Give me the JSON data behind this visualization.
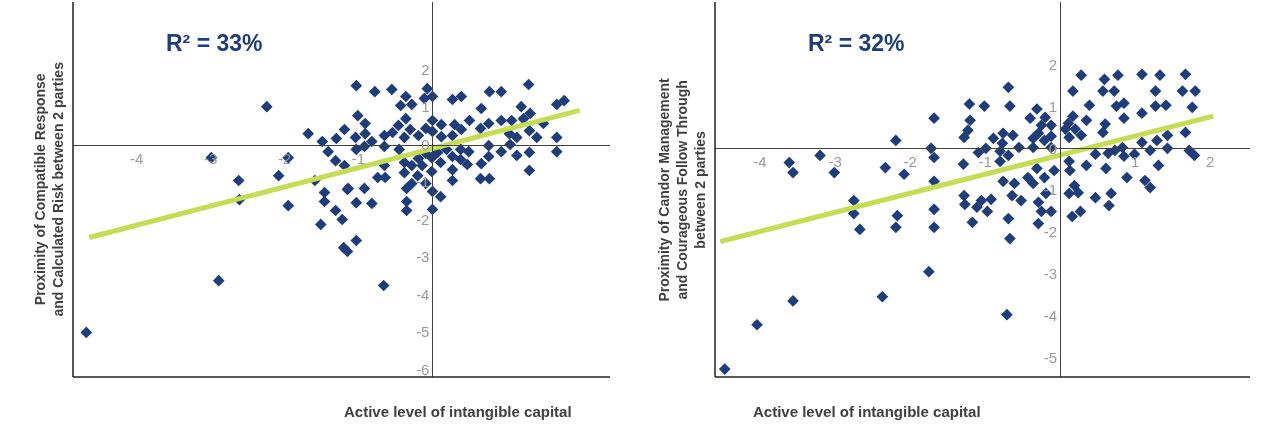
{
  "chart_data": [
    {
      "type": "scatter",
      "annotations": [
        "R² = 33%"
      ],
      "xlabel": "Active level of intangible capital",
      "ylabel": "Proximity of Compatible Response\nand Calculated Risk between 2 parties",
      "xlim": [
        -4.86,
        2.4
      ],
      "ylim": [
        -6.2,
        3.8
      ],
      "xticks": [
        -4,
        -3,
        -2,
        -1
      ],
      "yticks": [
        -6,
        -5,
        -4,
        -3,
        -2,
        -1,
        0,
        1,
        2
      ],
      "series": [
        {
          "marker": "diamond",
          "color": "#1f3d7a",
          "x": [
            -2.24,
            -2.99,
            -1.68,
            -1.49,
            -1.3,
            -1.19,
            -1.41,
            -1.31,
            -1.19,
            -1.95,
            -2.08,
            -2.62,
            -2.61,
            -1.95,
            -1.59,
            -1.46,
            -1.46,
            -1.31,
            -1.22,
            -1.51,
            -1.2,
            -1.15,
            -1.15,
            -2.89,
            -4.68,
            -1.03,
            -0.78,
            -0.55,
            -0.36,
            -0.07,
            -0.11,
            0.0,
            -0.43,
            -0.28,
            0.27,
            0.39,
            0.77,
            0.93,
            1.3,
            0.66,
            1.2,
            1.68,
            1.78,
            -1.01,
            -0.91,
            -0.36,
            -1.04,
            -0.91,
            -0.82,
            -0.65,
            -0.54,
            -0.46,
            -0.38,
            -0.3,
            -0.19,
            -0.09,
            0.0,
            0.0,
            0.12,
            0.12,
            0.3,
            0.27,
            0.39,
            0.5,
            0.65,
            0.76,
            0.93,
            1.07,
            1.04,
            1.14,
            1.23,
            1.32,
            1.31,
            1.41,
            1.5,
            1.68,
            -1.03,
            -0.92,
            -0.65,
            -0.45,
            -0.65,
            -0.38,
            -0.28,
            -0.38,
            -0.19,
            -0.14,
            -0.09,
            -0.01,
            0.07,
            0.11,
            0.19,
            0.27,
            0.38,
            0.38,
            0.47,
            0.49,
            0.76,
            0.76,
            0.66,
            0.93,
            1.05,
            1.14,
            1.31,
            1.68,
            0.27,
            0.27,
            0.65,
            0.77,
            1.31,
            -0.74,
            -0.64,
            -0.2,
            -0.09,
            -0.28,
            -0.35,
            -0.01,
            0.0,
            0.11,
            0.0,
            -0.92,
            -1.14,
            -1.03,
            -0.82,
            -0.35,
            -0.35,
            -1.03,
            -0.66
          ],
          "values": [
            1.01,
            -0.35,
            0.29,
            0.08,
            0.16,
            0.4,
            -0.19,
            -0.43,
            -0.56,
            -0.35,
            -0.83,
            -0.96,
            -1.47,
            -1.63,
            -0.96,
            -1.28,
            -1.52,
            -1.76,
            -2.0,
            -2.13,
            -2.75,
            -2.85,
            -1.2,
            -3.63,
            -5.01,
            1.57,
            1.41,
            1.47,
            1.28,
            1.49,
            1.23,
            1.28,
            1.04,
            1.07,
            1.2,
            1.28,
            1.41,
            1.41,
            1.6,
            0.96,
            1.01,
            1.07,
            1.17,
            0.77,
            0.56,
            0.69,
            0.19,
            0.29,
            0.08,
            0.24,
            0.32,
            0.51,
            0.19,
            0.4,
            0.24,
            0.43,
            0.64,
            0.35,
            0.53,
            0.21,
            0.53,
            0.24,
            0.4,
            0.64,
            0.43,
            0.56,
            0.64,
            0.64,
            0.29,
            0.19,
            0.69,
            0.83,
            0.37,
            0.19,
            0.56,
            0.19,
            -0.13,
            -0.05,
            -0.05,
            -0.13,
            -0.56,
            -0.48,
            -0.56,
            -0.75,
            -0.37,
            -0.56,
            -0.24,
            -0.35,
            -0.21,
            -0.48,
            -0.13,
            -0.32,
            -0.13,
            -0.4,
            -0.53,
            -0.19,
            -0.03,
            -0.32,
            -0.51,
            -0.19,
            0.0,
            -0.29,
            -0.21,
            -0.19,
            -0.67,
            -0.96,
            -0.91,
            -0.91,
            -0.69,
            -0.88,
            -0.88,
            -0.83,
            -1.04,
            -1.04,
            -1.17,
            -0.72,
            -1.25,
            -1.39,
            -1.73,
            -1.17,
            -1.17,
            -1.55,
            -1.57,
            -1.52,
            -1.76,
            -2.56,
            -3.76
          ]
        },
        {
          "type": "line",
          "color": "#c4dd54",
          "x": [
            -4.64,
            1.99
          ],
          "values": [
            -2.48,
            0.91
          ]
        }
      ]
    },
    {
      "type": "scatter",
      "annotations": [
        "R² = 32%"
      ],
      "xlabel": "Active level of intangible capital",
      "ylabel": "Proximity of Candor Management\nand Courageous Follow Through\nbetween 2 parties",
      "xlim": [
        -4.6,
        2.53
      ],
      "ylim": [
        -5.47,
        3.5
      ],
      "xticks": [
        -4,
        -3,
        -2,
        -1,
        1,
        2
      ],
      "yticks": [
        -5,
        -4,
        -3,
        -2,
        -1,
        0,
        1,
        2
      ],
      "series": [
        {
          "marker": "diamond",
          "color": "#1f3d7a",
          "x": [
            -1.21,
            -1.01,
            -1.68,
            -1.2,
            -1.23,
            -1.28,
            -0.89,
            -2.19,
            -1.72,
            -1.09,
            -0.99,
            -3.2,
            -3.61,
            -3.56,
            -3.01,
            -2.33,
            -2.08,
            -1.68,
            -1.29,
            -1.68,
            -1.28,
            -1.27,
            -1.05,
            -1.11,
            -0.97,
            -0.92,
            -2.75,
            -2.75,
            -2.67,
            -2.17,
            -2.19,
            -1.68,
            -1.68,
            -1.17,
            -1.75,
            -2.37,
            -3.56,
            -4.04,
            -4.47,
            -0.69,
            -0.67,
            -0.31,
            -0.4,
            -0.2,
            -0.76,
            -0.63,
            -0.36,
            -0.29,
            -0.25,
            -0.12,
            -0.12,
            -0.21,
            -0.77,
            -0.55,
            -0.36,
            -0.12,
            -0.8,
            -0.69,
            -0.8,
            -0.31,
            -0.08,
            -0.76,
            -0.61,
            -0.43,
            -0.36,
            -0.21,
            -0.19,
            -0.64,
            -0.52,
            -0.29,
            -0.25,
            -0.12,
            -0.69,
            -0.29,
            -0.67,
            -0.71,
            0.28,
            0.59,
            0.77,
            1.09,
            1.33,
            1.67,
            0.17,
            0.57,
            0.72,
            1.27,
            1.63,
            1.8,
            0.39,
            0.75,
            0.85,
            1.27,
            1.41,
            1.76,
            1.09,
            0.85,
            0.35,
            0.17,
            0.11,
            0.07,
            0.2,
            0.12,
            0.28,
            0.6,
            0.57,
            1.67,
            1.43,
            1.29,
            1.09,
            0.83,
            0.73,
            0.64,
            0.47,
            0.85,
            0.99,
            1.2,
            1.43,
            1.72,
            1.79,
            0.12,
            0.35,
            0.13,
            0.61,
            1.31,
            0.89,
            1.13,
            1.2,
            0.19,
            0.12,
            0.24,
            0.47,
            0.68,
            0.65,
            0.27,
            0.16
          ],
          "values": [
            1.06,
            1.01,
            0.72,
            0.67,
            0.43,
            0.26,
            0.24,
            0.19,
            0.0,
            -0.1,
            0.0,
            -0.17,
            -0.34,
            -0.58,
            -0.58,
            -0.46,
            -0.62,
            -0.22,
            -0.38,
            -0.79,
            -1.13,
            -1.34,
            -1.25,
            -1.41,
            -1.51,
            -1.22,
            -1.25,
            -1.56,
            -1.94,
            -1.61,
            -1.89,
            -1.46,
            -1.89,
            -1.77,
            -2.95,
            -3.55,
            -3.65,
            -4.22,
            -5.28,
            1.46,
            1.01,
            0.94,
            0.72,
            0.74,
            0.36,
            0.31,
            0.24,
            0.36,
            0.55,
            0.55,
            0.29,
            0.19,
            0.12,
            0.02,
            0.02,
            0.02,
            -0.07,
            -0.17,
            -0.31,
            -0.48,
            -0.53,
            -0.79,
            -0.84,
            -0.7,
            -0.84,
            -0.7,
            -1.08,
            -1.13,
            -1.25,
            -1.29,
            -1.51,
            -1.51,
            -1.68,
            -1.8,
            -2.16,
            -3.98,
            1.75,
            1.65,
            1.75,
            1.77,
            1.75,
            1.77,
            1.37,
            1.37,
            1.37,
            1.37,
            1.37,
            1.37,
            1.03,
            1.01,
            1.08,
            1.01,
            1.03,
            0.98,
            0.84,
            0.72,
            0.67,
            0.77,
            0.6,
            0.46,
            0.46,
            0.26,
            0.31,
            0.58,
            0.38,
            0.38,
            0.31,
            0.19,
            0.14,
            0.02,
            -0.05,
            -0.12,
            -0.14,
            -0.19,
            -0.14,
            -0.05,
            0.0,
            -0.05,
            -0.17,
            -0.31,
            -0.41,
            -0.53,
            -0.48,
            -0.41,
            -0.7,
            -0.77,
            -0.94,
            -0.89,
            -1.08,
            -1.06,
            -1.18,
            -1.08,
            -1.37,
            -1.51,
            -1.63
          ]
        },
        {
          "type": "line",
          "color": "#c4dd54",
          "x": [
            -4.53,
            2.04
          ],
          "values": [
            -2.23,
            0.77
          ]
        }
      ]
    }
  ]
}
